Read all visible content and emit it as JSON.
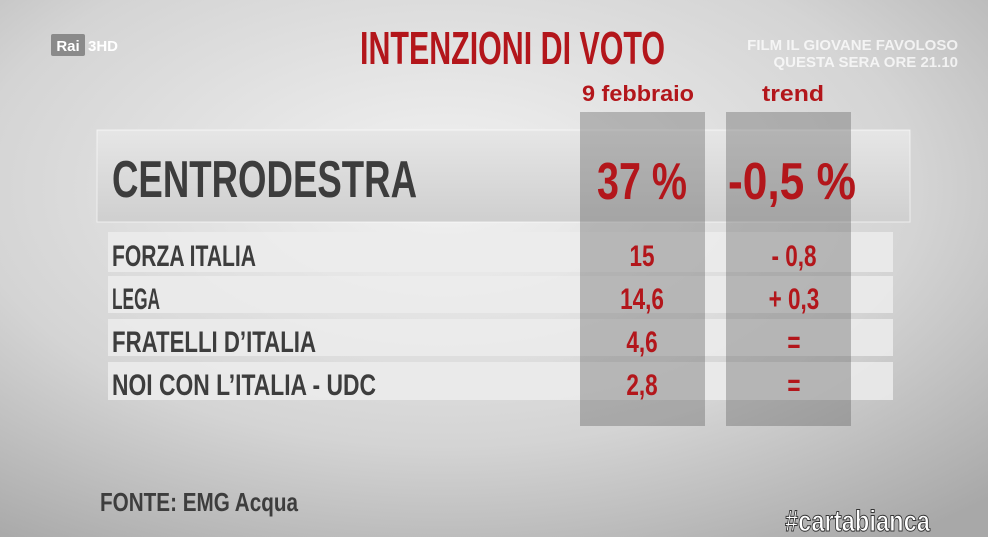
{
  "logo": {
    "brand": "Rai",
    "channel": "3HD"
  },
  "ticker": [
    "FILM IL GIOVANE FAVOLOSO",
    "QUESTA SERA ORE 21.10"
  ],
  "title": "INTENZIONI DI VOTO",
  "table": {
    "columns": [
      "9 febbraio",
      "trend"
    ],
    "total": [
      "CENTRODESTRA",
      "37 %",
      "-0,5 %"
    ],
    "rows": [
      [
        "FORZA ITALIA",
        "15",
        "- 0,8"
      ],
      [
        "LEGA",
        "14,6",
        "+ 0,3"
      ],
      [
        "FRATELLI D’ITALIA",
        "4,6",
        "="
      ],
      [
        "NOI CON L’ITALIA - UDC",
        "2,8",
        "="
      ]
    ]
  },
  "source": "FONTE: EMG Acqua",
  "hashtag": "#cartabianca"
}
